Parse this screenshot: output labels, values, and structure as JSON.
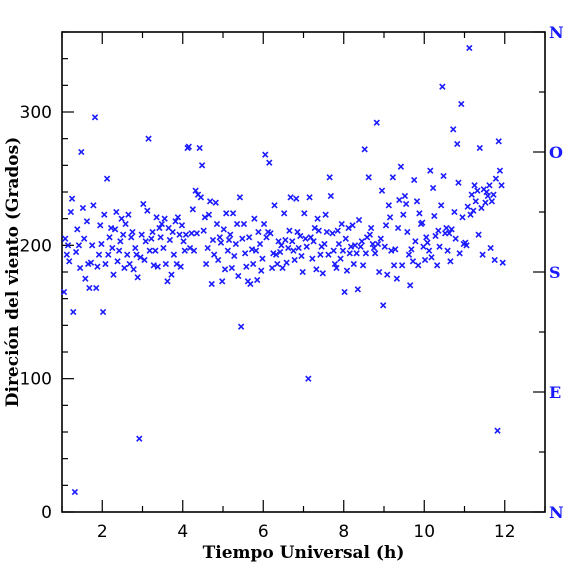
{
  "chart_data": {
    "type": "scatter",
    "xlabel": "Tiempo Universal (h)",
    "ylabel": "Direción del viento (Grados)",
    "xlim": [
      1,
      13
    ],
    "ylim": [
      0,
      360
    ],
    "x_ticks": [
      2,
      4,
      6,
      8,
      10,
      12
    ],
    "y_ticks": [
      0,
      100,
      200,
      300
    ],
    "marker": "x",
    "marker_color": "#1a1aff",
    "right_axis_labels": [
      {
        "label": "N",
        "value": 0
      },
      {
        "label": "E",
        "value": 90
      },
      {
        "label": "S",
        "value": 180
      },
      {
        "label": "O",
        "value": 270
      },
      {
        "label": "N",
        "value": 360
      }
    ],
    "points": [
      [
        1.05,
        165
      ],
      [
        1.08,
        205
      ],
      [
        1.12,
        193
      ],
      [
        1.15,
        200
      ],
      [
        1.18,
        188
      ],
      [
        1.22,
        225
      ],
      [
        1.25,
        235
      ],
      [
        1.28,
        150
      ],
      [
        1.32,
        15
      ],
      [
        1.35,
        195
      ],
      [
        1.38,
        212
      ],
      [
        1.42,
        200
      ],
      [
        1.45,
        183
      ],
      [
        1.48,
        270
      ],
      [
        1.52,
        228
      ],
      [
        1.55,
        205
      ],
      [
        1.58,
        175
      ],
      [
        1.62,
        218
      ],
      [
        1.65,
        186
      ],
      [
        1.68,
        168
      ],
      [
        1.72,
        187
      ],
      [
        1.75,
        200
      ],
      [
        1.78,
        230
      ],
      [
        1.82,
        296
      ],
      [
        1.85,
        168
      ],
      [
        1.88,
        184
      ],
      [
        1.92,
        193
      ],
      [
        1.95,
        215
      ],
      [
        1.98,
        201
      ],
      [
        2.02,
        150
      ],
      [
        2.05,
        223
      ],
      [
        2.08,
        186
      ],
      [
        2.12,
        250
      ],
      [
        2.15,
        193
      ],
      [
        2.18,
        206
      ],
      [
        2.22,
        213
      ],
      [
        2.25,
        198
      ],
      [
        2.28,
        178
      ],
      [
        2.32,
        212
      ],
      [
        2.35,
        225
      ],
      [
        2.38,
        188
      ],
      [
        2.42,
        196
      ],
      [
        2.45,
        203
      ],
      [
        2.48,
        220
      ],
      [
        2.52,
        208
      ],
      [
        2.55,
        183
      ],
      [
        2.58,
        216
      ],
      [
        2.62,
        193
      ],
      [
        2.65,
        223
      ],
      [
        2.68,
        186
      ],
      [
        2.72,
        206
      ],
      [
        2.75,
        210
      ],
      [
        2.78,
        182
      ],
      [
        2.82,
        198
      ],
      [
        2.85,
        193
      ],
      [
        2.88,
        176
      ],
      [
        2.92,
        55
      ],
      [
        2.95,
        191
      ],
      [
        2.98,
        208
      ],
      [
        3.02,
        231
      ],
      [
        3.05,
        189
      ],
      [
        3.08,
        203
      ],
      [
        3.12,
        226
      ],
      [
        3.15,
        280
      ],
      [
        3.18,
        196
      ],
      [
        3.22,
        205
      ],
      [
        3.25,
        210
      ],
      [
        3.28,
        185
      ],
      [
        3.32,
        196
      ],
      [
        3.35,
        221
      ],
      [
        3.38,
        184
      ],
      [
        3.42,
        213
      ],
      [
        3.45,
        206
      ],
      [
        3.48,
        216
      ],
      [
        3.52,
        198
      ],
      [
        3.55,
        220
      ],
      [
        3.58,
        186
      ],
      [
        3.62,
        173
      ],
      [
        3.65,
        213
      ],
      [
        3.68,
        204
      ],
      [
        3.72,
        178
      ],
      [
        3.75,
        210
      ],
      [
        3.78,
        193
      ],
      [
        3.82,
        218
      ],
      [
        3.85,
        186
      ],
      [
        3.88,
        221
      ],
      [
        3.92,
        208
      ],
      [
        3.95,
        184
      ],
      [
        3.98,
        215
      ],
      [
        4.02,
        203
      ],
      [
        4.05,
        196
      ],
      [
        4.08,
        208
      ],
      [
        4.12,
        273
      ],
      [
        4.15,
        274
      ],
      [
        4.18,
        198
      ],
      [
        4.22,
        209
      ],
      [
        4.25,
        227
      ],
      [
        4.28,
        196
      ],
      [
        4.32,
        241
      ],
      [
        4.35,
        209
      ],
      [
        4.38,
        238
      ],
      [
        4.42,
        273
      ],
      [
        4.45,
        236
      ],
      [
        4.48,
        260
      ],
      [
        4.52,
        211
      ],
      [
        4.55,
        221
      ],
      [
        4.58,
        186
      ],
      [
        4.62,
        198
      ],
      [
        4.65,
        223
      ],
      [
        4.68,
        233
      ],
      [
        4.72,
        171
      ],
      [
        4.75,
        204
      ],
      [
        4.78,
        193
      ],
      [
        4.82,
        232
      ],
      [
        4.85,
        216
      ],
      [
        4.88,
        189
      ],
      [
        4.92,
        206
      ],
      [
        4.95,
        202
      ],
      [
        4.98,
        173
      ],
      [
        5.02,
        212
      ],
      [
        5.05,
        182
      ],
      [
        5.08,
        224
      ],
      [
        5.12,
        196
      ],
      [
        5.15,
        204
      ],
      [
        5.18,
        208
      ],
      [
        5.22,
        183
      ],
      [
        5.25,
        224
      ],
      [
        5.28,
        192
      ],
      [
        5.32,
        201
      ],
      [
        5.35,
        216
      ],
      [
        5.38,
        177
      ],
      [
        5.42,
        236
      ],
      [
        5.45,
        139
      ],
      [
        5.48,
        205
      ],
      [
        5.52,
        216
      ],
      [
        5.55,
        194
      ],
      [
        5.58,
        184
      ],
      [
        5.62,
        173
      ],
      [
        5.65,
        206
      ],
      [
        5.68,
        171
      ],
      [
        5.72,
        197
      ],
      [
        5.75,
        186
      ],
      [
        5.78,
        220
      ],
      [
        5.82,
        196
      ],
      [
        5.85,
        174
      ],
      [
        5.88,
        210
      ],
      [
        5.92,
        201
      ],
      [
        5.95,
        181
      ],
      [
        5.98,
        190
      ],
      [
        6.02,
        216
      ],
      [
        6.05,
        268
      ],
      [
        6.08,
        206
      ],
      [
        6.12,
        210
      ],
      [
        6.15,
        262
      ],
      [
        6.18,
        209
      ],
      [
        6.22,
        183
      ],
      [
        6.25,
        194
      ],
      [
        6.28,
        230
      ],
      [
        6.32,
        193
      ],
      [
        6.35,
        186
      ],
      [
        6.38,
        203
      ],
      [
        6.42,
        195
      ],
      [
        6.45,
        200
      ],
      [
        6.48,
        183
      ],
      [
        6.52,
        224
      ],
      [
        6.55,
        204
      ],
      [
        6.58,
        187
      ],
      [
        6.62,
        198
      ],
      [
        6.65,
        211
      ],
      [
        6.68,
        236
      ],
      [
        6.72,
        203
      ],
      [
        6.75,
        196
      ],
      [
        6.78,
        189
      ],
      [
        6.82,
        235
      ],
      [
        6.85,
        210
      ],
      [
        6.88,
        198
      ],
      [
        6.92,
        207
      ],
      [
        6.95,
        192
      ],
      [
        6.98,
        180
      ],
      [
        7.02,
        224
      ],
      [
        7.05,
        205
      ],
      [
        7.08,
        199
      ],
      [
        7.12,
        100
      ],
      [
        7.15,
        236
      ],
      [
        7.18,
        206
      ],
      [
        7.22,
        190
      ],
      [
        7.25,
        203
      ],
      [
        7.28,
        213
      ],
      [
        7.32,
        182
      ],
      [
        7.35,
        220
      ],
      [
        7.38,
        211
      ],
      [
        7.42,
        193
      ],
      [
        7.45,
        199
      ],
      [
        7.48,
        179
      ],
      [
        7.52,
        201
      ],
      [
        7.55,
        223
      ],
      [
        7.58,
        210
      ],
      [
        7.62,
        193
      ],
      [
        7.65,
        251
      ],
      [
        7.68,
        237
      ],
      [
        7.72,
        209
      ],
      [
        7.75,
        196
      ],
      [
        7.78,
        186
      ],
      [
        7.82,
        183
      ],
      [
        7.85,
        211
      ],
      [
        7.88,
        201
      ],
      [
        7.92,
        190
      ],
      [
        7.95,
        216
      ],
      [
        7.98,
        196
      ],
      [
        8.02,
        165
      ],
      [
        8.05,
        205
      ],
      [
        8.08,
        181
      ],
      [
        8.12,
        213
      ],
      [
        8.15,
        194
      ],
      [
        8.18,
        199
      ],
      [
        8.22,
        215
      ],
      [
        8.25,
        186
      ],
      [
        8.28,
        200
      ],
      [
        8.32,
        194
      ],
      [
        8.35,
        167
      ],
      [
        8.38,
        219
      ],
      [
        8.42,
        199
      ],
      [
        8.45,
        203
      ],
      [
        8.48,
        185
      ],
      [
        8.52,
        272
      ],
      [
        8.55,
        194
      ],
      [
        8.58,
        206
      ],
      [
        8.62,
        251
      ],
      [
        8.65,
        208
      ],
      [
        8.68,
        213
      ],
      [
        8.72,
        201
      ],
      [
        8.75,
        198
      ],
      [
        8.78,
        194
      ],
      [
        8.82,
        292
      ],
      [
        8.85,
        201
      ],
      [
        8.88,
        180
      ],
      [
        8.92,
        205
      ],
      [
        8.95,
        241
      ],
      [
        8.98,
        155
      ],
      [
        9.02,
        199
      ],
      [
        9.05,
        215
      ],
      [
        9.08,
        178
      ],
      [
        9.12,
        230
      ],
      [
        9.15,
        221
      ],
      [
        9.18,
        196
      ],
      [
        9.22,
        251
      ],
      [
        9.25,
        185
      ],
      [
        9.28,
        197
      ],
      [
        9.32,
        175
      ],
      [
        9.35,
        213
      ],
      [
        9.38,
        234
      ],
      [
        9.42,
        259
      ],
      [
        9.45,
        185
      ],
      [
        9.48,
        223
      ],
      [
        9.52,
        237
      ],
      [
        9.55,
        231
      ],
      [
        9.58,
        210
      ],
      [
        9.62,
        193
      ],
      [
        9.65,
        170
      ],
      [
        9.68,
        197
      ],
      [
        9.72,
        188
      ],
      [
        9.75,
        249
      ],
      [
        9.78,
        203
      ],
      [
        9.82,
        233
      ],
      [
        9.85,
        185
      ],
      [
        9.88,
        224
      ],
      [
        9.92,
        216
      ],
      [
        9.95,
        217
      ],
      [
        9.98,
        199
      ],
      [
        10.02,
        189
      ],
      [
        10.05,
        206
      ],
      [
        10.08,
        202
      ],
      [
        10.12,
        196
      ],
      [
        10.15,
        256
      ],
      [
        10.18,
        191
      ],
      [
        10.22,
        243
      ],
      [
        10.25,
        222
      ],
      [
        10.28,
        207
      ],
      [
        10.32,
        185
      ],
      [
        10.35,
        211
      ],
      [
        10.38,
        199
      ],
      [
        10.42,
        230
      ],
      [
        10.45,
        319
      ],
      [
        10.48,
        252
      ],
      [
        10.52,
        209
      ],
      [
        10.55,
        213
      ],
      [
        10.58,
        196
      ],
      [
        10.62,
        209
      ],
      [
        10.65,
        188
      ],
      [
        10.68,
        212
      ],
      [
        10.72,
        287
      ],
      [
        10.75,
        225
      ],
      [
        10.78,
        205
      ],
      [
        10.82,
        276
      ],
      [
        10.85,
        247
      ],
      [
        10.88,
        194
      ],
      [
        10.92,
        306
      ],
      [
        10.95,
        221
      ],
      [
        10.98,
        201
      ],
      [
        11.02,
        202
      ],
      [
        11.05,
        200
      ],
      [
        11.08,
        229
      ],
      [
        11.12,
        348
      ],
      [
        11.15,
        223
      ],
      [
        11.18,
        238
      ],
      [
        11.22,
        226
      ],
      [
        11.25,
        245
      ],
      [
        11.28,
        233
      ],
      [
        11.32,
        241
      ],
      [
        11.35,
        208
      ],
      [
        11.38,
        273
      ],
      [
        11.42,
        228
      ],
      [
        11.45,
        193
      ],
      [
        11.48,
        242
      ],
      [
        11.52,
        232
      ],
      [
        11.55,
        240
      ],
      [
        11.58,
        237
      ],
      [
        11.62,
        245
      ],
      [
        11.65,
        198
      ],
      [
        11.68,
        233
      ],
      [
        11.72,
        238
      ],
      [
        11.75,
        189
      ],
      [
        11.78,
        250
      ],
      [
        11.82,
        61
      ],
      [
        11.85,
        278
      ],
      [
        11.88,
        256
      ],
      [
        11.92,
        245
      ],
      [
        11.95,
        187
      ]
    ]
  }
}
